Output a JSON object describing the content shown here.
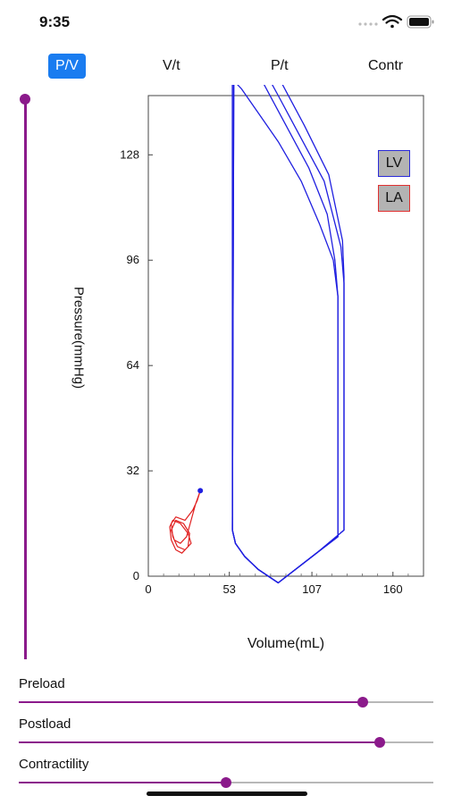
{
  "status": {
    "time": "9:35"
  },
  "tabs": [
    {
      "label": "P/V",
      "active": true
    },
    {
      "label": "V/t",
      "active": false
    },
    {
      "label": "P/t",
      "active": false
    },
    {
      "label": "Contr",
      "active": false
    }
  ],
  "vertical_slider": {
    "value": 1.0
  },
  "chart_data": {
    "type": "line",
    "xlabel": "Volume(mL)",
    "ylabel": "Pressure(mmHg)",
    "xlim": [
      0,
      180
    ],
    "ylim": [
      0,
      146
    ],
    "xticks": [
      0,
      53,
      107,
      160
    ],
    "yticks": [
      0,
      32,
      64,
      96,
      128
    ],
    "legend": [
      {
        "name": "LV",
        "color": "#1f1fe0"
      },
      {
        "name": "LA",
        "color": "#e02020"
      }
    ],
    "series": [
      {
        "name": "LV",
        "color": "#1f1fe0",
        "loops": [
          [
            [
              57,
              150
            ],
            [
              61,
              148
            ],
            [
              70,
              142
            ],
            [
              85,
              132
            ],
            [
              100,
              120
            ],
            [
              112,
              107
            ],
            [
              121,
              96
            ],
            [
              124,
              85
            ],
            [
              124,
              12
            ],
            [
              110,
              7
            ],
            [
              85,
              -2
            ],
            [
              72,
              2
            ],
            [
              63,
              6
            ],
            [
              57,
              10
            ],
            [
              55,
              14
            ],
            [
              55,
              150
            ]
          ],
          [
            [
              57,
              155
            ],
            [
              63,
              158
            ],
            [
              75,
              150
            ],
            [
              90,
              137
            ],
            [
              105,
              124
            ],
            [
              117,
              110
            ],
            [
              122,
              96
            ],
            [
              124,
              85
            ],
            [
              124,
              12
            ],
            [
              110,
              7
            ],
            [
              85,
              -2
            ],
            [
              72,
              2
            ],
            [
              63,
              6
            ],
            [
              57,
              10
            ],
            [
              55,
              14
            ],
            [
              55,
              155
            ]
          ],
          [
            [
              57,
              160
            ],
            [
              63,
              162
            ],
            [
              72,
              157
            ],
            [
              85,
              146
            ],
            [
              100,
              133
            ],
            [
              115,
              120
            ],
            [
              126,
              100
            ],
            [
              128,
              89
            ],
            [
              128,
              14
            ],
            [
              110,
              7
            ],
            [
              85,
              -2
            ],
            [
              72,
              2
            ],
            [
              63,
              6
            ],
            [
              57,
              10
            ],
            [
              55,
              14
            ],
            [
              56,
              160
            ]
          ],
          [
            [
              56,
              164
            ],
            [
              63,
              165
            ],
            [
              72,
              160
            ],
            [
              87,
              150
            ],
            [
              102,
              137
            ],
            [
              118,
              122
            ],
            [
              127,
              102
            ],
            [
              128,
              91
            ],
            [
              128,
              14
            ],
            [
              110,
              7
            ],
            [
              85,
              -2
            ],
            [
              72,
              2
            ],
            [
              63,
              6
            ],
            [
              57,
              10
            ],
            [
              55,
              14
            ],
            [
              56,
              164
            ]
          ]
        ],
        "marker": [
          56,
          164
        ]
      },
      {
        "name": "LA",
        "color": "#e02020",
        "points": [
          [
            34,
            26
          ],
          [
            31,
            22
          ],
          [
            28,
            17
          ],
          [
            25,
            12
          ],
          [
            21,
            10
          ],
          [
            17,
            11
          ],
          [
            15,
            14
          ],
          [
            18,
            17
          ],
          [
            23,
            16
          ],
          [
            27,
            13
          ],
          [
            26,
            9
          ],
          [
            22,
            7
          ],
          [
            18,
            8
          ],
          [
            15,
            11
          ],
          [
            14,
            15
          ],
          [
            16,
            17
          ],
          [
            21,
            16
          ],
          [
            26,
            13
          ],
          [
            28,
            10
          ],
          [
            24,
            8
          ],
          [
            19,
            9
          ],
          [
            16,
            12
          ],
          [
            15,
            16
          ],
          [
            18,
            18
          ],
          [
            24,
            17
          ],
          [
            29,
            20
          ],
          [
            32,
            23
          ],
          [
            34,
            26
          ]
        ],
        "marker": [
          34,
          26
        ]
      }
    ]
  },
  "sliders": [
    {
      "label": "Preload",
      "value": 0.83
    },
    {
      "label": "Postload",
      "value": 0.87
    },
    {
      "label": "Contractility",
      "value": 0.5
    }
  ]
}
